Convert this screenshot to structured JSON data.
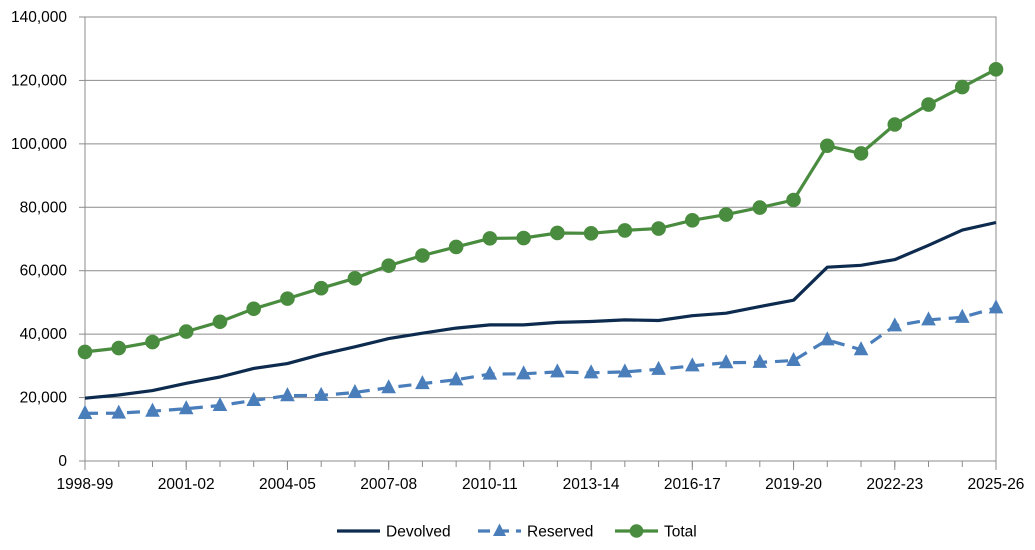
{
  "chart_data": {
    "type": "line",
    "title": "",
    "xlabel": "",
    "ylabel": "",
    "ylim": [
      0,
      140000
    ],
    "yticks": [
      0,
      20000,
      40000,
      60000,
      80000,
      100000,
      120000,
      140000
    ],
    "ytick_labels": [
      "0",
      "20,000",
      "40,000",
      "60,000",
      "80,000",
      "100,000",
      "120,000",
      "140,000"
    ],
    "categories": [
      "1998-99",
      "1999-00",
      "2000-01",
      "2001-02",
      "2002-03",
      "2003-04",
      "2004-05",
      "2005-06",
      "2006-07",
      "2007-08",
      "2008-09",
      "2009-10",
      "2010-11",
      "2011-12",
      "2012-13",
      "2013-14",
      "2014-15",
      "2015-16",
      "2016-17",
      "2017-18",
      "2018-19",
      "2019-20",
      "2020-21",
      "2021-22",
      "2022-23",
      "2023-24",
      "2024-25",
      "2025-26"
    ],
    "xtick_labels": [
      "1998-99",
      "2001-02",
      "2004-05",
      "2007-08",
      "2010-11",
      "2013-14",
      "2016-17",
      "2019-20",
      "2022-23",
      "2025-26"
    ],
    "grid": "horizontal",
    "legend_position": "bottom",
    "series": [
      {
        "name": "Devolved",
        "color": "#0d2b4e",
        "style": "solid",
        "marker": "none",
        "values": [
          19800,
          20800,
          22200,
          24500,
          26500,
          29200,
          30700,
          33600,
          36000,
          38600,
          40300,
          41900,
          42900,
          42900,
          43700,
          44000,
          44500,
          44300,
          45800,
          46600,
          48700,
          50700,
          61100,
          61700,
          63500,
          68000,
          72800,
          75200
        ]
      },
      {
        "name": "Reserved",
        "color": "#4a7ebb",
        "style": "dashed",
        "marker": "triangle",
        "values": [
          15000,
          15100,
          15700,
          16500,
          17500,
          19100,
          20600,
          20700,
          21600,
          23100,
          24400,
          25600,
          27400,
          27500,
          28100,
          27800,
          28100,
          28900,
          30000,
          31000,
          31100,
          31700,
          38200,
          35100,
          42600,
          44500,
          45300,
          48300
        ]
      },
      {
        "name": "Total",
        "color": "#4a8c3f",
        "style": "solid",
        "marker": "circle",
        "values": [
          34400,
          35600,
          37500,
          40800,
          43900,
          48000,
          51200,
          54500,
          57600,
          61600,
          64800,
          67500,
          70200,
          70300,
          71900,
          71800,
          72700,
          73300,
          75900,
          77700,
          79900,
          82300,
          99400,
          97000,
          106100,
          112400,
          117900,
          123500
        ]
      }
    ]
  }
}
